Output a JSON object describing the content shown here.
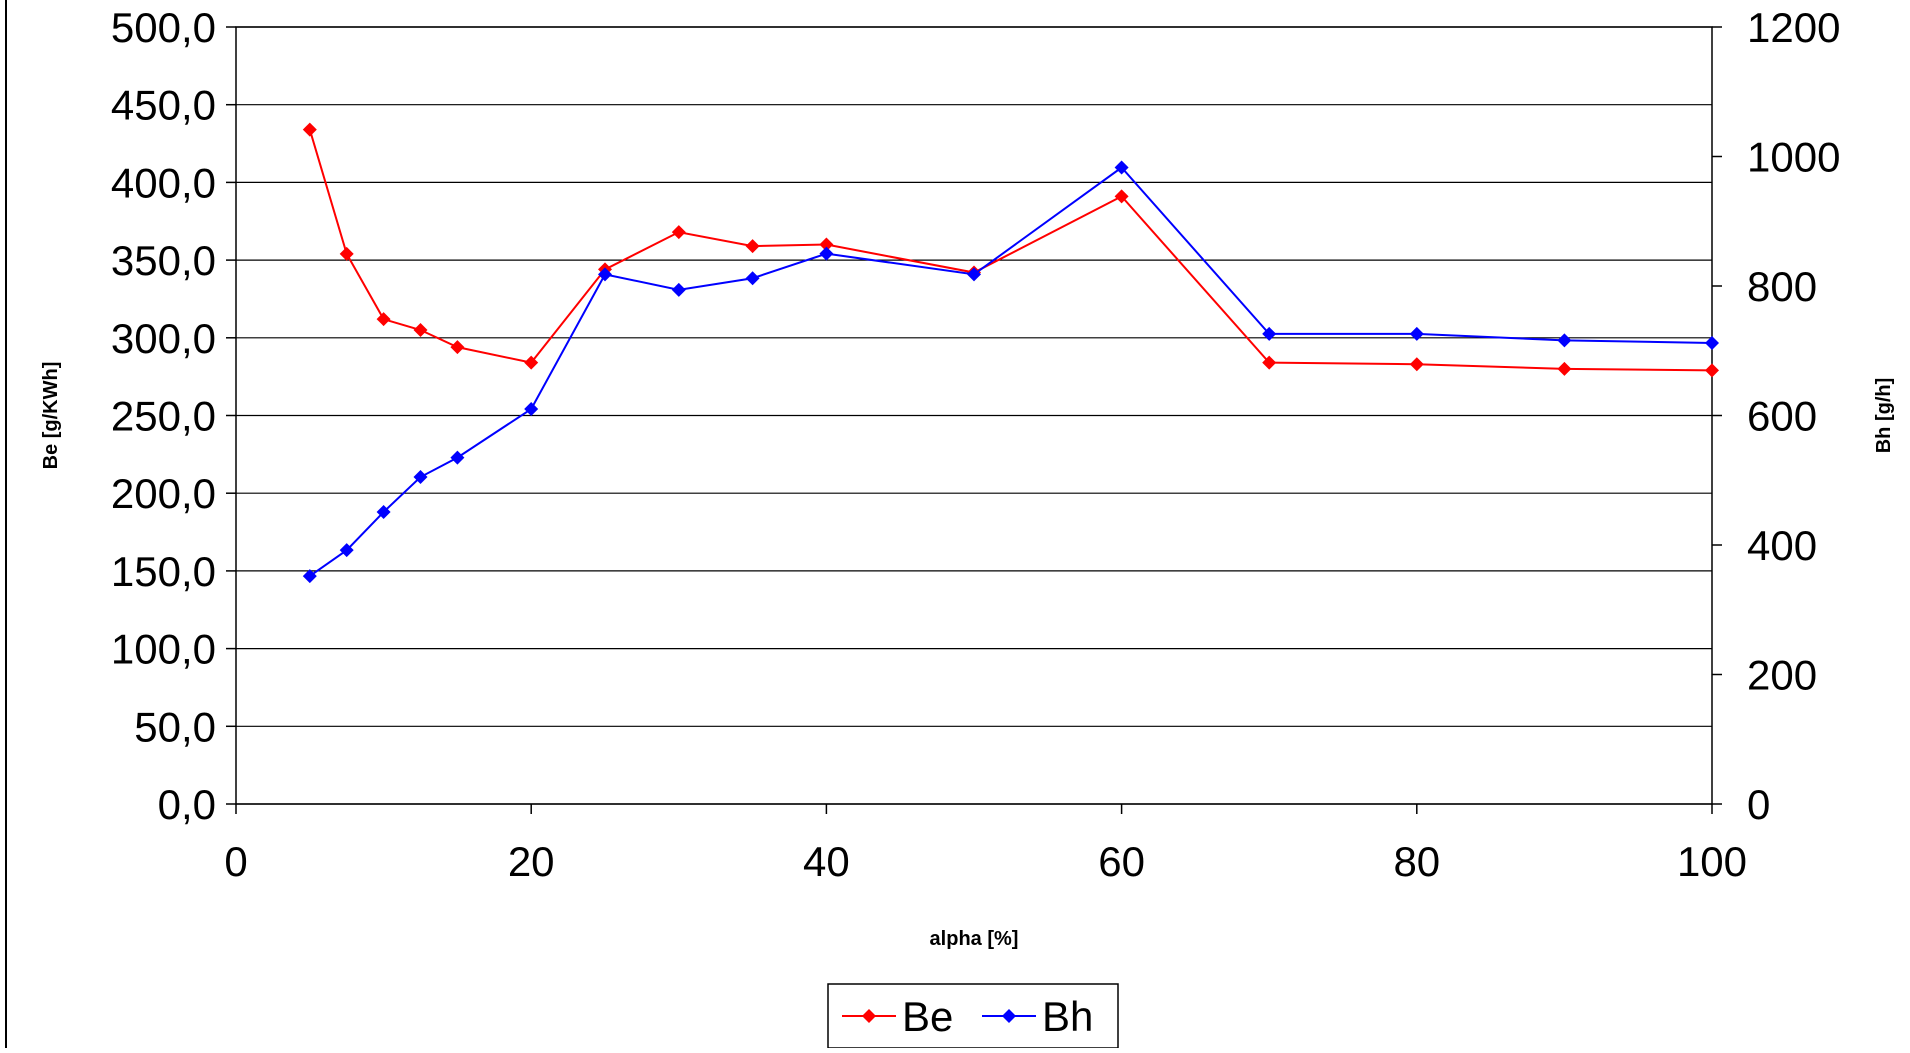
{
  "chart_data": {
    "type": "line",
    "title": "",
    "xlabel": "alpha [%]",
    "ylabel_left": "Be [g/KWh]",
    "ylabel_right": "Bh [g/h]",
    "xlim": [
      0,
      100
    ],
    "ylim_left": [
      0,
      500
    ],
    "ylim_right": [
      0,
      1200
    ],
    "x_ticks": [
      "0",
      "20",
      "40",
      "60",
      "80",
      "100"
    ],
    "y_left_ticks": [
      "0,0",
      "50,0",
      "100,0",
      "150,0",
      "200,0",
      "250,0",
      "300,0",
      "350,0",
      "400,0",
      "450,0",
      "500,0"
    ],
    "y_right_ticks": [
      "0",
      "200",
      "400",
      "600",
      "800",
      "1000",
      "1200"
    ],
    "grid": "horizontal",
    "legend_position": "bottom",
    "series": [
      {
        "name": "Be",
        "axis": "left",
        "color": "#ff0000",
        "x": [
          5,
          7.5,
          10,
          12.5,
          15,
          20,
          25,
          30,
          35,
          40,
          50,
          60,
          70,
          80,
          90,
          100
        ],
        "y": [
          434,
          354,
          312,
          305,
          294,
          284,
          344,
          368,
          359,
          360,
          342,
          391,
          284,
          283,
          280,
          279
        ]
      },
      {
        "name": "Bh",
        "axis": "right",
        "color": "#0000ff",
        "x": [
          5,
          7.5,
          10,
          12.5,
          15,
          20,
          25,
          30,
          35,
          40,
          50,
          60,
          70,
          80,
          90,
          100
        ],
        "y": [
          352,
          392,
          451,
          505,
          535,
          610,
          818,
          794,
          812,
          850,
          818,
          983,
          726,
          726,
          716,
          712
        ]
      }
    ]
  }
}
